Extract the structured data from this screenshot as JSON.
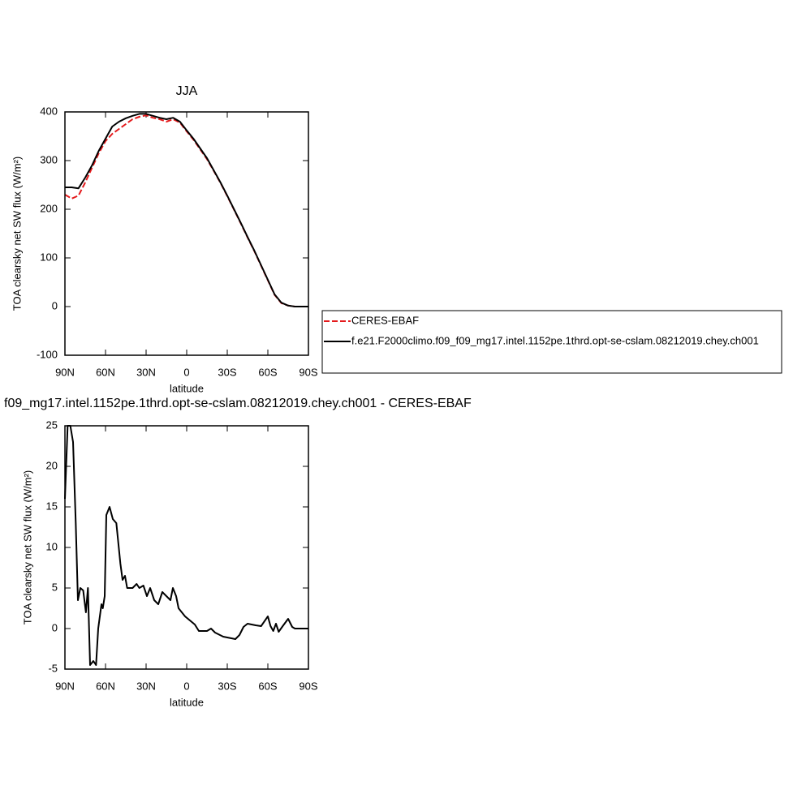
{
  "chart_data": [
    {
      "type": "line",
      "title": "JJA",
      "xlabel": "latitude",
      "ylabel": "TOA clearsky net SW flux (W/m²)",
      "x": [
        90,
        85,
        80,
        75,
        70,
        65,
        60,
        55,
        50,
        45,
        40,
        35,
        30,
        25,
        20,
        15,
        10,
        5,
        0,
        -5,
        -10,
        -15,
        -20,
        -25,
        -30,
        -35,
        -40,
        -45,
        -50,
        -55,
        -60,
        -65,
        -70,
        -75,
        -80,
        -85,
        -90
      ],
      "series": [
        {
          "name": "CERES-EBAF",
          "color": "#e41a1c",
          "dashed": true,
          "values": [
            230,
            222,
            228,
            255,
            285,
            315,
            340,
            355,
            365,
            375,
            385,
            390,
            393,
            388,
            385,
            380,
            385,
            378,
            360,
            343,
            323,
            303,
            279,
            254,
            227,
            199,
            171,
            142,
            114,
            84,
            54,
            24,
            7,
            2,
            0,
            0,
            0
          ]
        },
        {
          "name": "f.e21.F2000climo.f09_f09_mg17.intel.1152pe.1thrd.opt-se-cslam.08212019.chey.ch001",
          "color": "#000000",
          "dashed": false,
          "values": [
            245,
            245,
            243,
            265,
            290,
            320,
            345,
            370,
            380,
            387,
            392,
            396,
            396,
            392,
            388,
            385,
            388,
            380,
            362,
            345,
            325,
            305,
            280,
            255,
            228,
            200,
            172,
            143,
            115,
            85,
            55,
            25,
            8,
            2,
            0,
            0,
            0
          ]
        }
      ],
      "xlim": [
        90,
        -90
      ],
      "xticks": [
        {
          "value": 90,
          "label": "90N"
        },
        {
          "value": 60,
          "label": "60N"
        },
        {
          "value": 30,
          "label": "30N"
        },
        0,
        {
          "value": -30,
          "label": "30S"
        },
        {
          "value": -60,
          "label": "60S"
        },
        {
          "value": -90,
          "label": "90S"
        }
      ],
      "ylim": [
        -100,
        400
      ],
      "yticks": [
        -100,
        0,
        100,
        200,
        300,
        400
      ],
      "legend": "right"
    },
    {
      "type": "line",
      "title": "f09_mg17.intel.1152pe.1thrd.opt-se-cslam.08212019.chey.ch001 - CERES-EBAF",
      "xlabel": "latitude",
      "ylabel": "TOA clearsky net SW flux (W/m²)",
      "x": [
        90,
        88,
        86,
        84,
        82,
        80.4,
        78.6,
        76.5,
        74.5,
        73,
        71.4,
        69,
        67,
        65.4,
        63,
        62,
        60.6,
        59.4,
        57,
        54.6,
        52,
        49,
        47.4,
        45.6,
        44,
        40,
        37,
        35,
        32,
        29.4,
        27,
        24,
        21,
        18,
        15,
        12,
        10.2,
        7.8,
        6,
        1.2,
        -6,
        -9,
        -15,
        -18,
        -21,
        -27,
        -33,
        -36,
        -39,
        -42,
        -45,
        -51,
        -55,
        -60,
        -62,
        -64,
        -66,
        -68,
        -71,
        -75,
        -78,
        -80,
        -90
      ],
      "series": [
        {
          "color": "#000000",
          "dashed": false,
          "values": [
            16,
            25,
            25,
            23,
            13,
            3.5,
            5,
            4.7,
            2,
            5,
            -4.5,
            -4,
            -4.5,
            0,
            3,
            2.5,
            4,
            14,
            15,
            13.5,
            13,
            8,
            6,
            6.5,
            5,
            5,
            5.5,
            5,
            5.3,
            4,
            5,
            3.5,
            3,
            4.5,
            4,
            3.5,
            5,
            4,
            2.5,
            1.5,
            0.5,
            -0.3,
            -0.3,
            0,
            -0.5,
            -1,
            -1.2,
            -1.3,
            -0.8,
            0.2,
            0.6,
            0.4,
            0.3,
            1.5,
            0.3,
            -0.3,
            0.6,
            -0.4,
            0.3,
            1.2,
            0.2,
            0,
            0
          ]
        }
      ],
      "xlim": [
        90,
        -90
      ],
      "xticks": [
        {
          "value": 90,
          "label": "90N"
        },
        {
          "value": 60,
          "label": "60N"
        },
        {
          "value": 30,
          "label": "30N"
        },
        0,
        {
          "value": -30,
          "label": "30S"
        },
        {
          "value": -60,
          "label": "60S"
        },
        {
          "value": -90,
          "label": "90S"
        }
      ],
      "ylim": [
        -5,
        25
      ],
      "yticks": [
        -5,
        0,
        5,
        10,
        15,
        20,
        25
      ]
    }
  ]
}
